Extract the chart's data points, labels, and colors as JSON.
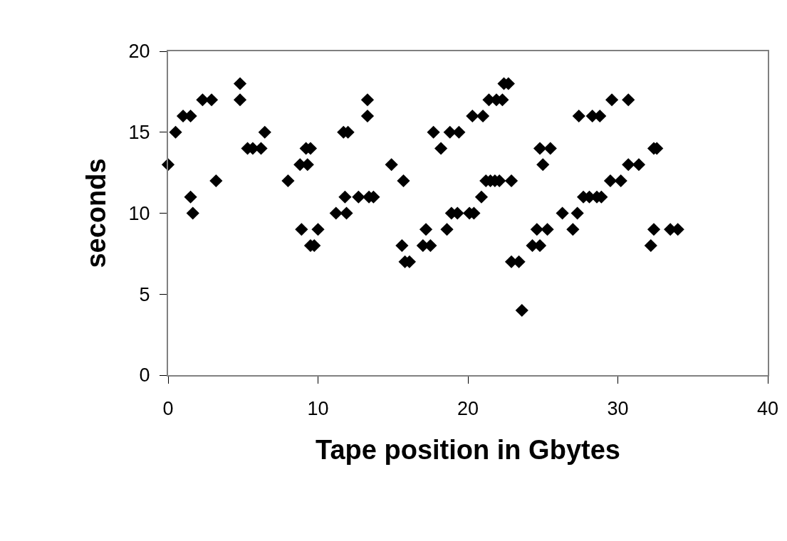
{
  "chart_data": {
    "type": "scatter",
    "xlabel": "Tape position in Gbytes",
    "ylabel": "seconds",
    "xlim": [
      0,
      40
    ],
    "xticks": [
      0,
      10,
      20,
      30,
      40
    ],
    "ylim": [
      0,
      20
    ],
    "yticks": [
      0,
      5,
      10,
      15,
      20
    ],
    "marker": "diamond",
    "series": [
      {
        "color": "#000000",
        "x": [
          0.0,
          0.5,
          1.0,
          1.5,
          1.5,
          1.65,
          2.3,
          2.9,
          3.2,
          4.8,
          4.8,
          5.3,
          5.65,
          6.2,
          6.45,
          8.0,
          8.8,
          9.3,
          9.2,
          9.5,
          8.9,
          10.0,
          9.5,
          9.75,
          11.2,
          11.9,
          11.8,
          11.7,
          12.0,
          12.7,
          13.4,
          13.7,
          13.3,
          13.3,
          14.9,
          15.7,
          15.6,
          15.8,
          16.1,
          17.0,
          17.5,
          17.2,
          18.6,
          17.7,
          18.2,
          18.8,
          19.4,
          18.9,
          19.3,
          20.1,
          20.4,
          20.3,
          21.0,
          20.9,
          21.4,
          21.9,
          22.3,
          22.4,
          22.7,
          21.2,
          21.5,
          21.8,
          22.1,
          22.9,
          22.9,
          23.4,
          23.6,
          24.3,
          24.8,
          24.6,
          25.3,
          24.8,
          25.5,
          25.0,
          26.3,
          27.3,
          27.0,
          27.4,
          28.3,
          28.8,
          27.7,
          28.1,
          28.6,
          28.9,
          29.5,
          30.2,
          29.6,
          30.7,
          30.7,
          31.4,
          32.4,
          32.6,
          32.2,
          32.4,
          33.5,
          34.0
        ],
        "values": [
          13,
          15,
          16,
          16,
          11,
          10,
          17,
          17,
          12,
          18,
          17,
          14,
          14,
          14,
          15,
          12,
          13,
          13,
          14,
          14,
          9,
          9,
          8,
          8,
          10,
          10,
          11,
          15,
          15,
          11,
          11,
          11,
          17,
          16,
          13,
          12,
          8,
          7,
          7,
          8,
          8,
          9,
          9,
          15,
          14,
          15,
          15,
          10,
          10,
          10,
          10,
          16,
          16,
          11,
          17,
          17,
          17,
          18,
          18,
          12,
          12,
          12,
          12,
          12,
          7,
          7,
          4,
          8,
          8,
          9,
          9,
          14,
          14,
          13,
          10,
          10,
          9,
          16,
          16,
          16,
          11,
          11,
          11,
          11,
          12,
          12,
          17,
          17,
          13,
          13,
          14,
          14,
          8,
          9,
          9,
          9
        ]
      }
    ]
  }
}
